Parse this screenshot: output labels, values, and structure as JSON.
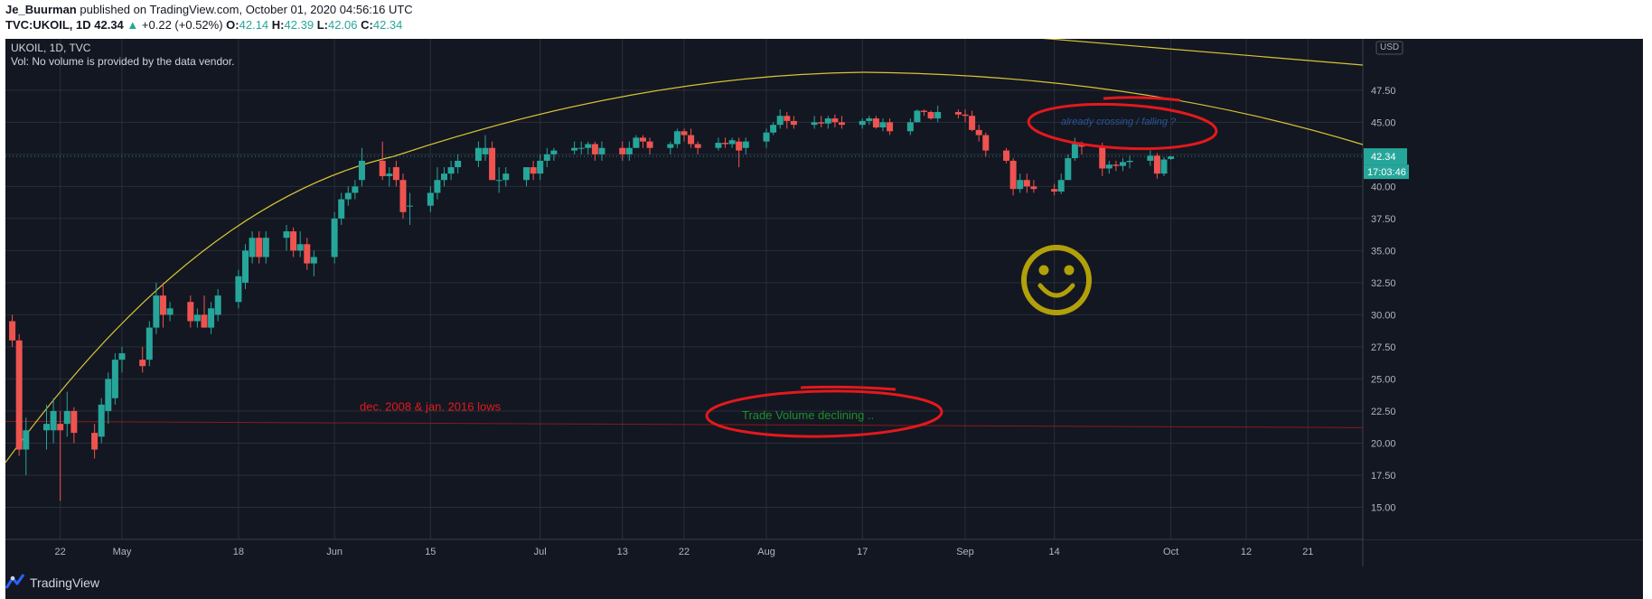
{
  "header": {
    "author": "Je_Buurman",
    "published": "published on TradingView.com, October 01, 2020 04:56:16 UTC",
    "symbol_full": "TVC:UKOIL, 1D",
    "last": "42.34",
    "change_arrow": "▲",
    "change": "+0.22 (+0.52%)",
    "o_label": "O:",
    "o": "42.14",
    "h_label": "H:",
    "h": "42.39",
    "l_label": "L:",
    "l": "42.06",
    "c_label": "C:",
    "c": "42.34"
  },
  "legend": {
    "title": "UKOIL, 1D, TVC",
    "volume_note": "Vol: No volume is provided by the data vendor."
  },
  "footer": {
    "brand": "TradingView"
  },
  "colors": {
    "background": "#131722",
    "up": "#26a69a",
    "down": "#ef5350",
    "grid": "#2a2e39",
    "axis_text": "#b2b5be",
    "arc": "#d8c435",
    "support": "#8b1a1a",
    "annotation_red": "#e3191c",
    "smiley": "#b2a00a",
    "volume_text": "#1c8f2c",
    "crossing_text": "#2e5fa8"
  },
  "chart_data": {
    "type": "candlestick",
    "currency": "USD",
    "ylim": [
      12.5,
      51.5
    ],
    "y_ticks": [
      15,
      17.5,
      20,
      22.5,
      25,
      27.5,
      30,
      32.5,
      35,
      37.5,
      40,
      42.5,
      45,
      47.5
    ],
    "x_range": [
      "2020-04-14",
      "2020-10-29"
    ],
    "x_ticks": [
      {
        "date": "2020-04-22",
        "label": "22"
      },
      {
        "date": "2020-05-01",
        "label": "May"
      },
      {
        "date": "2020-05-18",
        "label": "18"
      },
      {
        "date": "2020-06-01",
        "label": "Jun"
      },
      {
        "date": "2020-06-15",
        "label": "15"
      },
      {
        "date": "2020-07-01",
        "label": "Jul"
      },
      {
        "date": "2020-07-13",
        "label": "13"
      },
      {
        "date": "2020-07-22",
        "label": "22"
      },
      {
        "date": "2020-08-03",
        "label": "Aug"
      },
      {
        "date": "2020-08-17",
        "label": "17"
      },
      {
        "date": "2020-09-01",
        "label": "Sep"
      },
      {
        "date": "2020-09-14",
        "label": "14"
      },
      {
        "date": "2020-10-01",
        "label": "Oct"
      },
      {
        "date": "2020-10-12",
        "label": "12"
      },
      {
        "date": "2020-10-21",
        "label": "21"
      }
    ],
    "last_price_label": "42.34",
    "countdown_label": "17:03:46",
    "candles": [
      [
        "2020-04-15",
        29.5,
        30.0,
        27.5,
        28.0
      ],
      [
        "2020-04-16",
        28.0,
        28.5,
        19.0,
        19.5
      ],
      [
        "2020-04-17",
        19.5,
        22.0,
        17.5,
        21.0
      ],
      [
        "2020-04-20",
        21.0,
        23.0,
        19.5,
        21.5
      ],
      [
        "2020-04-21",
        21.0,
        23.5,
        20.0,
        22.5
      ],
      [
        "2020-04-22",
        21.5,
        22.5,
        15.5,
        21.0
      ],
      [
        "2020-04-23",
        21.5,
        24.0,
        20.5,
        22.5
      ],
      [
        "2020-04-24",
        22.5,
        22.8,
        20.0,
        20.8
      ],
      [
        "2020-04-27",
        20.8,
        21.5,
        18.8,
        19.5
      ],
      [
        "2020-04-28",
        20.5,
        23.5,
        20.0,
        23.0
      ],
      [
        "2020-04-29",
        22.5,
        25.5,
        21.5,
        25.0
      ],
      [
        "2020-04-30",
        23.5,
        27.0,
        23.0,
        26.5
      ],
      [
        "2020-05-01",
        26.5,
        27.5,
        25.5,
        27.0
      ],
      [
        "2020-05-04",
        26.5,
        27.5,
        25.5,
        26.0
      ],
      [
        "2020-05-05",
        26.5,
        29.5,
        26.0,
        29.0
      ],
      [
        "2020-05-06",
        29.0,
        32.5,
        28.5,
        31.5
      ],
      [
        "2020-05-07",
        31.5,
        32.5,
        29.0,
        30.0
      ],
      [
        "2020-05-08",
        30.0,
        31.0,
        29.5,
        30.5
      ],
      [
        "2020-05-11",
        31.0,
        31.5,
        29.0,
        29.5
      ],
      [
        "2020-05-12",
        29.5,
        30.5,
        29.0,
        30.0
      ],
      [
        "2020-05-13",
        30.0,
        31.5,
        29.0,
        29.0
      ],
      [
        "2020-05-14",
        29.0,
        31.0,
        28.5,
        30.5
      ],
      [
        "2020-05-15",
        30.0,
        32.0,
        29.5,
        31.5
      ],
      [
        "2020-05-18",
        31.0,
        33.5,
        30.5,
        33.0
      ],
      [
        "2020-05-19",
        32.5,
        35.5,
        32.0,
        35.0
      ],
      [
        "2020-05-20",
        34.5,
        36.5,
        34.0,
        36.0
      ],
      [
        "2020-05-21",
        36.0,
        36.5,
        34.0,
        34.5
      ],
      [
        "2020-05-22",
        34.5,
        36.5,
        34.0,
        36.0
      ],
      [
        "2020-05-25",
        36.0,
        37.0,
        35.0,
        36.5
      ],
      [
        "2020-05-26",
        36.5,
        36.8,
        34.5,
        35.0
      ],
      [
        "2020-05-27",
        35.0,
        36.5,
        34.5,
        35.5
      ],
      [
        "2020-05-28",
        35.5,
        36.0,
        33.5,
        34.0
      ],
      [
        "2020-05-29",
        34.0,
        35.0,
        33.0,
        34.5
      ],
      [
        "2020-06-01",
        34.5,
        38.0,
        34.0,
        37.5
      ],
      [
        "2020-06-02",
        37.5,
        39.5,
        37.0,
        39.0
      ],
      [
        "2020-06-03",
        39.0,
        40.0,
        38.5,
        39.5
      ],
      [
        "2020-06-04",
        39.5,
        40.5,
        39.0,
        40.0
      ],
      [
        "2020-06-05",
        40.5,
        43.0,
        40.0,
        42.0
      ],
      [
        "2020-06-08",
        42.0,
        43.5,
        40.5,
        40.8
      ],
      [
        "2020-06-09",
        40.8,
        41.5,
        40.0,
        41.0
      ],
      [
        "2020-06-10",
        41.5,
        42.0,
        40.0,
        40.5
      ],
      [
        "2020-06-11",
        40.5,
        41.0,
        37.5,
        38.0
      ],
      [
        "2020-06-12",
        38.5,
        39.5,
        37.0,
        38.5
      ],
      [
        "2020-06-15",
        38.5,
        40.0,
        38.0,
        39.5
      ],
      [
        "2020-06-16",
        39.5,
        41.5,
        39.0,
        40.5
      ],
      [
        "2020-06-17",
        40.5,
        41.5,
        40.0,
        41.0
      ],
      [
        "2020-06-18",
        41.0,
        42.0,
        40.5,
        41.5
      ],
      [
        "2020-06-19",
        41.5,
        42.5,
        41.0,
        42.0
      ],
      [
        "2020-06-22",
        42.0,
        43.5,
        41.5,
        43.0
      ],
      [
        "2020-06-23",
        42.5,
        44.0,
        42.0,
        43.0
      ],
      [
        "2020-06-24",
        43.0,
        43.5,
        40.5,
        40.5
      ],
      [
        "2020-06-25",
        40.5,
        41.5,
        39.5,
        40.5
      ],
      [
        "2020-06-26",
        40.5,
        41.5,
        40.0,
        41.0
      ],
      [
        "2020-06-29",
        40.5,
        41.5,
        40.0,
        41.5
      ],
      [
        "2020-06-30",
        41.5,
        42.0,
        40.5,
        41.0
      ],
      [
        "2020-07-01",
        41.0,
        42.5,
        40.5,
        42.0
      ],
      [
        "2020-07-02",
        42.0,
        43.0,
        41.5,
        42.5
      ],
      [
        "2020-07-03",
        42.5,
        43.0,
        42.0,
        42.8
      ],
      [
        "2020-07-06",
        42.8,
        43.5,
        42.5,
        43.0
      ],
      [
        "2020-07-07",
        43.0,
        43.5,
        42.5,
        43.0
      ],
      [
        "2020-07-08",
        43.0,
        43.5,
        42.5,
        43.3
      ],
      [
        "2020-07-09",
        43.3,
        43.5,
        42.0,
        42.5
      ],
      [
        "2020-07-10",
        42.5,
        43.5,
        42.0,
        43.0
      ],
      [
        "2020-07-13",
        43.0,
        43.5,
        42.0,
        42.5
      ],
      [
        "2020-07-14",
        42.5,
        43.5,
        42.0,
        43.0
      ],
      [
        "2020-07-15",
        43.0,
        44.0,
        43.0,
        43.8
      ],
      [
        "2020-07-16",
        43.8,
        44.0,
        43.0,
        43.5
      ],
      [
        "2020-07-17",
        43.5,
        43.8,
        42.5,
        43.0
      ],
      [
        "2020-07-20",
        43.0,
        43.5,
        42.5,
        43.3
      ],
      [
        "2020-07-21",
        43.3,
        44.5,
        43.0,
        44.3
      ],
      [
        "2020-07-22",
        44.3,
        44.5,
        43.5,
        44.0
      ],
      [
        "2020-07-23",
        44.0,
        44.5,
        43.0,
        43.3
      ],
      [
        "2020-07-24",
        43.3,
        43.5,
        42.5,
        43.0
      ],
      [
        "2020-07-27",
        43.0,
        43.8,
        42.8,
        43.4
      ],
      [
        "2020-07-28",
        43.4,
        43.8,
        43.0,
        43.3
      ],
      [
        "2020-07-29",
        43.3,
        43.8,
        43.0,
        43.6
      ],
      [
        "2020-07-30",
        43.5,
        43.8,
        41.5,
        42.8
      ],
      [
        "2020-07-31",
        43.0,
        43.8,
        42.5,
        43.5
      ],
      [
        "2020-08-03",
        43.5,
        44.5,
        43.0,
        44.2
      ],
      [
        "2020-08-04",
        44.2,
        45.0,
        44.0,
        44.8
      ],
      [
        "2020-08-05",
        44.8,
        46.0,
        44.5,
        45.5
      ],
      [
        "2020-08-06",
        45.5,
        45.8,
        44.5,
        45.1
      ],
      [
        "2020-08-07",
        45.1,
        45.5,
        44.5,
        44.8
      ],
      [
        "2020-08-10",
        44.8,
        45.5,
        44.5,
        45.0
      ],
      [
        "2020-08-11",
        45.0,
        45.5,
        44.6,
        44.9
      ],
      [
        "2020-08-12",
        44.9,
        45.5,
        44.5,
        45.3
      ],
      [
        "2020-08-13",
        45.3,
        45.6,
        44.6,
        45.0
      ],
      [
        "2020-08-14",
        45.0,
        45.5,
        44.5,
        44.8
      ],
      [
        "2020-08-17",
        44.8,
        45.3,
        44.5,
        45.1
      ],
      [
        "2020-08-18",
        45.1,
        45.5,
        44.8,
        45.3
      ],
      [
        "2020-08-19",
        45.3,
        45.5,
        44.5,
        44.6
      ],
      [
        "2020-08-20",
        44.6,
        45.3,
        44.3,
        45.0
      ],
      [
        "2020-08-21",
        45.0,
        45.3,
        44.0,
        44.3
      ],
      [
        "2020-08-24",
        44.3,
        45.3,
        44.0,
        45.0
      ],
      [
        "2020-08-25",
        45.0,
        46.0,
        45.0,
        45.9
      ],
      [
        "2020-08-26",
        45.9,
        46.0,
        45.5,
        45.8
      ],
      [
        "2020-08-27",
        45.8,
        45.9,
        45.2,
        45.3
      ],
      [
        "2020-08-28",
        45.3,
        46.3,
        45.0,
        45.8
      ],
      [
        "2020-08-31",
        45.8,
        46.0,
        45.3,
        45.6
      ],
      [
        "2020-09-01",
        45.6,
        46.0,
        45.0,
        45.5
      ],
      [
        "2020-09-02",
        45.5,
        45.9,
        44.3,
        44.4
      ],
      [
        "2020-09-03",
        44.4,
        44.8,
        43.5,
        44.0
      ],
      [
        "2020-09-04",
        44.0,
        44.2,
        42.3,
        42.8
      ],
      [
        "2020-09-07",
        42.8,
        43.0,
        41.8,
        42.0
      ],
      [
        "2020-09-08",
        42.0,
        42.2,
        39.3,
        39.8
      ],
      [
        "2020-09-09",
        39.8,
        41.0,
        39.5,
        40.5
      ],
      [
        "2020-09-10",
        40.5,
        41.0,
        39.5,
        40.0
      ],
      [
        "2020-09-11",
        40.0,
        40.5,
        39.5,
        39.8
      ],
      [
        "2020-09-14",
        39.8,
        40.2,
        39.3,
        39.6
      ],
      [
        "2020-09-15",
        39.6,
        41.0,
        39.4,
        40.5
      ],
      [
        "2020-09-16",
        40.5,
        42.5,
        40.5,
        42.2
      ],
      [
        "2020-09-17",
        42.2,
        43.8,
        42.0,
        43.3
      ],
      [
        "2020-09-18",
        43.3,
        43.5,
        42.5,
        43.1
      ],
      [
        "2020-09-21",
        43.1,
        43.4,
        40.8,
        41.4
      ],
      [
        "2020-09-22",
        41.4,
        42.0,
        41.0,
        41.7
      ],
      [
        "2020-09-23",
        41.7,
        42.0,
        41.2,
        41.6
      ],
      [
        "2020-09-24",
        41.6,
        42.2,
        41.2,
        41.9
      ],
      [
        "2020-09-25",
        41.9,
        42.4,
        41.4,
        42.0
      ],
      [
        "2020-09-28",
        42.0,
        42.8,
        41.6,
        42.4
      ],
      [
        "2020-09-29",
        42.4,
        42.6,
        40.6,
        41.0
      ],
      [
        "2020-09-30",
        41.0,
        42.3,
        40.8,
        42.1
      ],
      [
        "2020-10-01",
        42.14,
        42.39,
        42.06,
        42.34
      ]
    ]
  },
  "annotations": {
    "support_label": "dec. 2008 & jan. 2016 lows",
    "support_level": 21.7,
    "crossing_text": "already crossing / falling ?",
    "volume_text": "Trade Volume declining .."
  }
}
